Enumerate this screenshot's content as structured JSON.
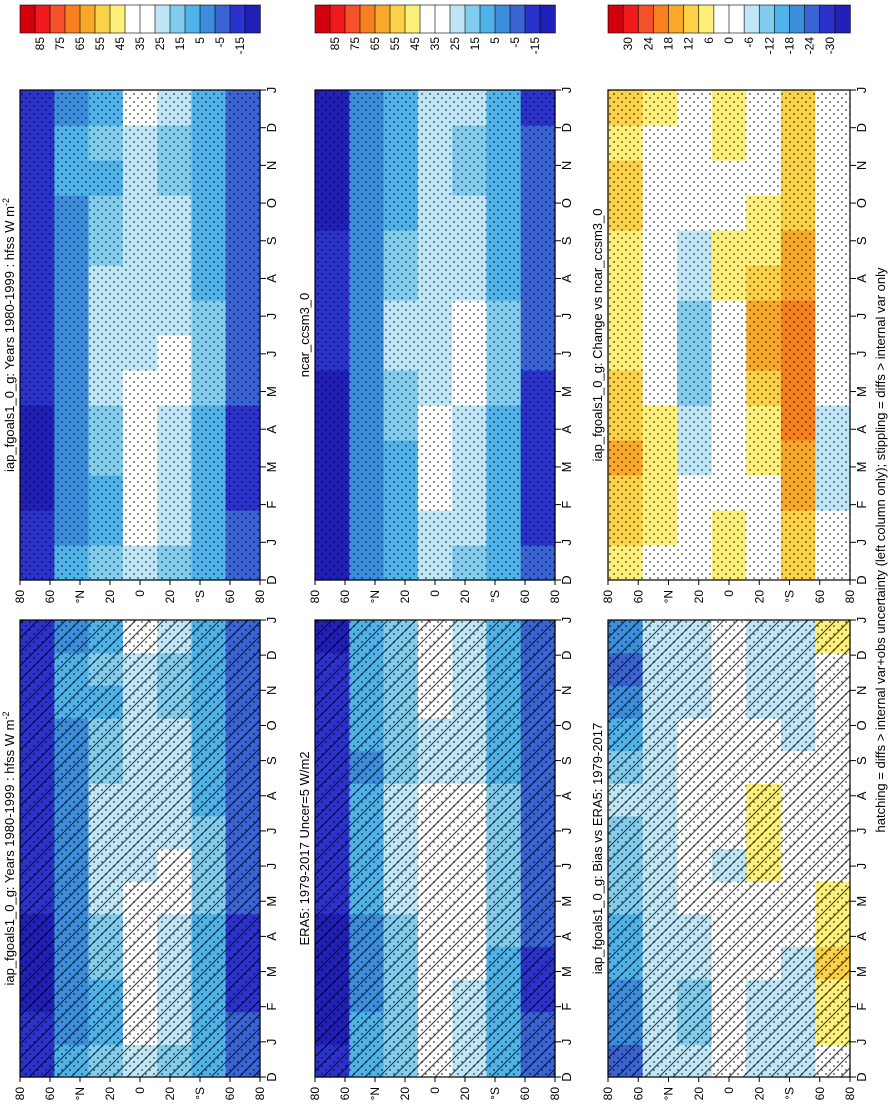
{
  "figure_caption": "hatching = diffs > internal var+obs uncertainty (left column only); stippling = diffs > internal var only",
  "month_labels": [
    "D",
    "J",
    "F",
    "M",
    "A",
    "M",
    "J",
    "J",
    "A",
    "S",
    "O",
    "N",
    "D",
    "J"
  ],
  "lat_labels": [
    "80",
    "60",
    "°N",
    "20",
    "0",
    "20",
    "°S",
    "60",
    "80"
  ],
  "colors": {
    "abs_scale": [
      "#d4000e",
      "#f01a1c",
      "#f4502a",
      "#f7801f",
      "#f9a82c",
      "#fbd14a",
      "#fdf07a",
      "#ffffff",
      "#ffffff",
      "#bfe6f6",
      "#82cdee",
      "#4fb3ea",
      "#3d8ddd",
      "#3a63d4",
      "#2b32cc",
      "#2020b8"
    ],
    "diff_scale": [
      "#d4000e",
      "#f01a1c",
      "#f4502a",
      "#f7801f",
      "#f9a82c",
      "#fbd14a",
      "#fdf07a",
      "#ffffff",
      "#ffffff",
      "#bfe6f6",
      "#82cdee",
      "#4fb3ea",
      "#3d8ddd",
      "#3a63d4",
      "#2b32cc",
      "#2020b8"
    ]
  },
  "chart_data": [
    {
      "type": "heatmap",
      "id": "model_abs_left",
      "title": "iap_fgoals1_0_g: Years 1980-1999 : hfss W m",
      "title_sup": "-2",
      "xlabel": "month",
      "ylabel": "latitude",
      "x": [
        "D",
        "J",
        "F",
        "M",
        "A",
        "M",
        "J",
        "J",
        "A",
        "S",
        "O",
        "N",
        "D",
        "J"
      ],
      "y": [
        -90,
        -60,
        -30,
        0,
        30,
        60,
        90
      ],
      "colorbar_ticks": [
        "85",
        "75",
        "65",
        "55",
        "45",
        "35",
        "25",
        "15",
        "5",
        "-5",
        "-15"
      ],
      "overlay": "hatching+stippling",
      "values": [
        [
          -10,
          -12,
          -14,
          -15,
          -14,
          -12,
          -10,
          -9,
          -8,
          -9,
          -10,
          -10,
          -10,
          -12
        ],
        [
          8,
          6,
          5,
          4,
          5,
          6,
          7,
          7,
          6,
          5,
          6,
          8,
          8,
          6
        ],
        [
          15,
          14,
          13,
          15,
          18,
          22,
          24,
          25,
          22,
          18,
          15,
          14,
          15,
          14
        ],
        [
          28,
          30,
          32,
          33,
          32,
          30,
          28,
          28,
          27,
          26,
          26,
          27,
          28,
          30
        ],
        [
          20,
          22,
          24,
          26,
          28,
          30,
          30,
          28,
          26,
          24,
          22,
          20,
          20,
          22
        ],
        [
          10,
          9,
          10,
          12,
          14,
          16,
          18,
          16,
          14,
          12,
          10,
          10,
          10,
          9
        ],
        [
          -5,
          -6,
          -8,
          -8,
          -7,
          -6,
          -5,
          -4,
          -4,
          -5,
          -5,
          -5,
          -5,
          -6
        ]
      ]
    },
    {
      "type": "heatmap",
      "id": "model_abs_right",
      "title": "iap_fgoals1_0_g: Years 1980-1999 : hfss W m",
      "title_sup": "-2",
      "xlabel": "month",
      "ylabel": "latitude",
      "x": [
        "D",
        "J",
        "F",
        "M",
        "A",
        "M",
        "J",
        "J",
        "A",
        "S",
        "O",
        "N",
        "D",
        "J"
      ],
      "y": [
        -90,
        -60,
        -30,
        0,
        30,
        60,
        90
      ],
      "colorbar_ticks": [
        "85",
        "75",
        "65",
        "55",
        "45",
        "35",
        "25",
        "15",
        "5",
        "-5",
        "-15"
      ],
      "overlay": "stippling",
      "values": [
        [
          -10,
          -12,
          -14,
          -15,
          -14,
          -12,
          -10,
          -9,
          -8,
          -9,
          -10,
          -10,
          -10,
          -12
        ],
        [
          8,
          6,
          5,
          4,
          5,
          6,
          7,
          7,
          6,
          5,
          6,
          8,
          8,
          6
        ],
        [
          15,
          14,
          13,
          15,
          18,
          22,
          24,
          25,
          22,
          18,
          15,
          14,
          15,
          14
        ],
        [
          28,
          30,
          32,
          33,
          32,
          30,
          28,
          28,
          27,
          26,
          26,
          27,
          28,
          30
        ],
        [
          20,
          22,
          24,
          26,
          28,
          30,
          30,
          28,
          26,
          24,
          22,
          20,
          20,
          22
        ],
        [
          10,
          9,
          10,
          12,
          14,
          16,
          18,
          16,
          14,
          12,
          10,
          10,
          10,
          9
        ],
        [
          -5,
          -6,
          -8,
          -8,
          -7,
          -6,
          -5,
          -4,
          -4,
          -5,
          -5,
          -5,
          -5,
          -6
        ]
      ]
    },
    {
      "type": "heatmap",
      "id": "obs_era5",
      "title": "ERA5: 1979-2017 Uncer=5 W/m2",
      "title_sup": "",
      "xlabel": "month",
      "ylabel": "latitude",
      "x": [
        "D",
        "J",
        "F",
        "M",
        "A",
        "M",
        "J",
        "J",
        "A",
        "S",
        "O",
        "N",
        "D",
        "J"
      ],
      "y": [
        -90,
        -60,
        -30,
        0,
        30,
        60,
        90
      ],
      "colorbar_ticks": [
        "85",
        "75",
        "65",
        "55",
        "45",
        "35",
        "25",
        "15",
        "5",
        "-5",
        "-15"
      ],
      "overlay": "hatching+stippling",
      "values": [
        [
          -12,
          -14,
          -16,
          -16,
          -15,
          -13,
          -11,
          -10,
          -10,
          -11,
          -12,
          -12,
          -12,
          -14
        ],
        [
          10,
          8,
          7,
          6,
          7,
          8,
          9,
          9,
          8,
          7,
          8,
          10,
          10,
          8
        ],
        [
          18,
          17,
          16,
          18,
          20,
          22,
          24,
          24,
          22,
          20,
          18,
          17,
          18,
          17
        ],
        [
          30,
          32,
          33,
          34,
          33,
          31,
          30,
          30,
          29,
          28,
          28,
          29,
          30,
          32
        ],
        [
          24,
          26,
          28,
          30,
          32,
          33,
          33,
          31,
          29,
          27,
          25,
          24,
          24,
          26
        ],
        [
          12,
          11,
          12,
          14,
          16,
          18,
          20,
          18,
          16,
          14,
          12,
          12,
          12,
          11
        ],
        [
          -4,
          -5,
          -7,
          -7,
          -6,
          -5,
          -4,
          -3,
          -3,
          -4,
          -4,
          -4,
          -4,
          -5
        ]
      ]
    },
    {
      "type": "heatmap",
      "id": "ref_ncar",
      "title": "ncar_ccsm3_0",
      "title_sup": "",
      "xlabel": "month",
      "ylabel": "latitude",
      "x": [
        "D",
        "J",
        "F",
        "M",
        "A",
        "M",
        "J",
        "J",
        "A",
        "S",
        "O",
        "N",
        "D",
        "J"
      ],
      "y": [
        -90,
        -60,
        -30,
        0,
        30,
        60,
        90
      ],
      "colorbar_ticks": [
        "85",
        "75",
        "65",
        "55",
        "45",
        "35",
        "25",
        "15",
        "5",
        "-5",
        "-15"
      ],
      "overlay": "stippling",
      "values": [
        [
          -14,
          -16,
          -18,
          -18,
          -17,
          -15,
          -13,
          -12,
          -11,
          -12,
          -14,
          -14,
          -14,
          -16
        ],
        [
          6,
          4,
          3,
          2,
          3,
          4,
          5,
          5,
          4,
          3,
          4,
          6,
          6,
          4
        ],
        [
          14,
          13,
          12,
          14,
          16,
          20,
          22,
          22,
          20,
          16,
          14,
          13,
          14,
          13
        ],
        [
          26,
          28,
          30,
          31,
          30,
          28,
          26,
          26,
          25,
          24,
          24,
          25,
          26,
          28
        ],
        [
          20,
          22,
          24,
          26,
          28,
          31,
          33,
          31,
          28,
          25,
          22,
          20,
          20,
          22
        ],
        [
          10,
          9,
          10,
          12,
          14,
          16,
          18,
          16,
          14,
          12,
          10,
          10,
          10,
          9
        ],
        [
          -6,
          -7,
          -9,
          -9,
          -8,
          -7,
          -6,
          -5,
          -5,
          -6,
          -6,
          -6,
          -6,
          -7
        ]
      ]
    },
    {
      "type": "heatmap",
      "id": "bias_vs_era5",
      "title": "iap_fgoals1_0_g: Bias vs ERA5: 1979-2017",
      "title_sup": "",
      "xlabel": "month",
      "ylabel": "latitude",
      "x": [
        "D",
        "J",
        "F",
        "M",
        "A",
        "M",
        "J",
        "J",
        "A",
        "S",
        "O",
        "N",
        "D",
        "J"
      ],
      "y": [
        -90,
        -60,
        -30,
        0,
        30,
        60,
        90
      ],
      "colorbar_ticks": [
        "30",
        "24",
        "18",
        "12",
        "6",
        "0",
        "-6",
        "-12",
        "-18",
        "-24",
        "-30"
      ],
      "overlay": "hatching+stippling",
      "values": [
        [
          -22,
          -20,
          -18,
          -16,
          -14,
          -12,
          -10,
          -9,
          -8,
          -10,
          -14,
          -18,
          -22,
          -20
        ],
        [
          -6,
          -6,
          -5,
          -5,
          -6,
          -7,
          -6,
          -5,
          -6,
          -8,
          -7,
          -6,
          -6,
          -6
        ],
        [
          -8,
          -9,
          -10,
          -8,
          -6,
          -4,
          -3,
          -2,
          -2,
          -3,
          -4,
          -5,
          -6,
          -8
        ],
        [
          -4,
          -4,
          -2,
          -1,
          -2,
          -4,
          -5,
          -4,
          -3,
          -2,
          -2,
          -3,
          -4,
          -4
        ],
        [
          -8,
          -8,
          -6,
          -4,
          -2,
          2,
          6,
          8,
          6,
          2,
          -4,
          -6,
          -8,
          -8
        ],
        [
          -8,
          -7,
          -6,
          -5,
          -4,
          -3,
          -3,
          -3,
          -3,
          -4,
          -6,
          -7,
          -8,
          -7
        ],
        [
          2,
          6,
          8,
          10,
          8,
          6,
          4,
          2,
          0,
          -2,
          -4,
          -2,
          2,
          6
        ]
      ]
    },
    {
      "type": "heatmap",
      "id": "change_vs_ncar",
      "title": "iap_fgoals1_0_g: Change vs ncar_ccsm3_0",
      "title_sup": "",
      "xlabel": "month",
      "ylabel": "latitude",
      "x": [
        "D",
        "J",
        "F",
        "M",
        "A",
        "M",
        "J",
        "J",
        "A",
        "S",
        "O",
        "N",
        "D",
        "J"
      ],
      "y": [
        -90,
        -60,
        -30,
        0,
        30,
        60,
        90
      ],
      "colorbar_ticks": [
        "30",
        "24",
        "18",
        "12",
        "6",
        "0",
        "-6",
        "-12",
        "-18",
        "-24",
        "-30"
      ],
      "overlay": "stippling",
      "values": [
        [
          8,
          10,
          12,
          14,
          12,
          10,
          8,
          6,
          6,
          8,
          10,
          10,
          8,
          10
        ],
        [
          2,
          6,
          8,
          8,
          6,
          4,
          2,
          0,
          -2,
          -2,
          -2,
          0,
          2,
          6
        ],
        [
          0,
          -2,
          -4,
          -6,
          -8,
          -10,
          -12,
          -10,
          -8,
          -6,
          -4,
          -2,
          0,
          -2
        ],
        [
          6,
          6,
          4,
          2,
          0,
          0,
          2,
          4,
          6,
          6,
          4,
          4,
          6,
          6
        ],
        [
          2,
          2,
          4,
          6,
          8,
          12,
          14,
          14,
          12,
          8,
          6,
          4,
          2,
          2
        ],
        [
          10,
          12,
          14,
          16,
          18,
          20,
          20,
          18,
          16,
          14,
          12,
          10,
          10,
          12
        ],
        [
          -4,
          -4,
          -6,
          -8,
          -6,
          -2,
          2,
          4,
          4,
          2,
          -2,
          -4,
          -4,
          -4
        ]
      ]
    }
  ]
}
